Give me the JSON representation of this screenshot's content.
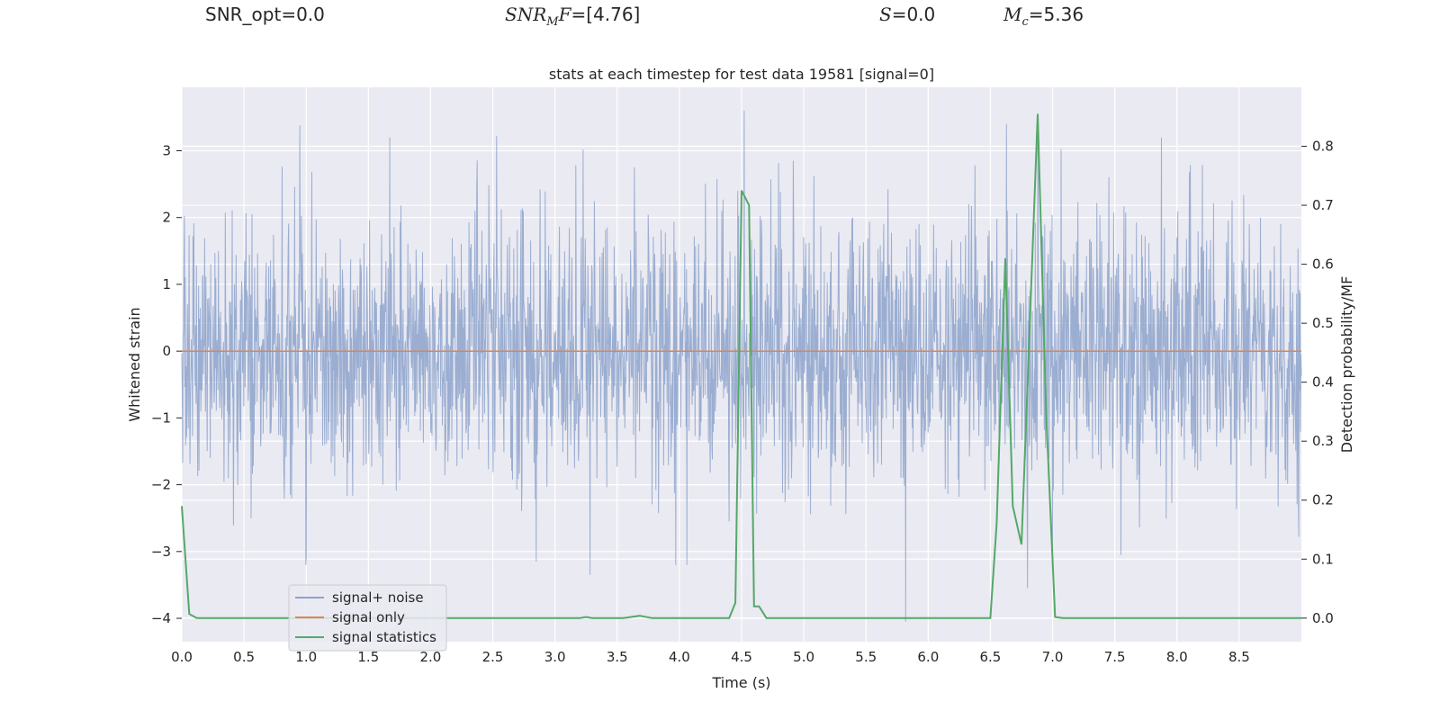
{
  "header": {
    "snr_opt": "SNR_opt=0.0",
    "snr_mf_value": "=[4.76]",
    "s_value": "=0.0",
    "mc_value": "=5.36"
  },
  "chart_data": {
    "type": "line",
    "title": "stats at each timestep for test data 19581 [signal=0]",
    "xlabel": "Time (s)",
    "ylabel_left": "Whitened strain",
    "ylabel_right": "Detection probability/MF",
    "xlim": [
      0.0,
      9.0
    ],
    "ylim_left": [
      -4.35,
      3.95
    ],
    "ylim_right": [
      -0.04,
      0.9
    ],
    "xticks": [
      0.0,
      0.5,
      1.0,
      1.5,
      2.0,
      2.5,
      3.0,
      3.5,
      4.0,
      4.5,
      5.0,
      5.5,
      6.0,
      6.5,
      7.0,
      7.5,
      8.0,
      8.5
    ],
    "xtick_labels": [
      "0.0",
      "0.5",
      "1.0",
      "1.5",
      "2.0",
      "2.5",
      "3.0",
      "3.5",
      "4.0",
      "4.5",
      "5.0",
      "5.5",
      "6.0",
      "6.5",
      "7.0",
      "7.5",
      "8.0",
      "8.5"
    ],
    "yticks_left": [
      3,
      2,
      1,
      0,
      -1,
      -2,
      -3,
      -4
    ],
    "ytick_labels_left": [
      "3",
      "2",
      "1",
      "0",
      "−1",
      "−2",
      "−3",
      "−4"
    ],
    "yticks_right": [
      0.8,
      0.7,
      0.6,
      0.5,
      0.4,
      0.3,
      0.2,
      0.1,
      0.0
    ],
    "ytick_labels_right": [
      "0.8",
      "0.7",
      "0.6",
      "0.5",
      "0.4",
      "0.3",
      "0.2",
      "0.1",
      "0.0"
    ],
    "grid": true,
    "legend_position": "lower-left",
    "series": [
      {
        "name": "signal+ noise",
        "axis": "left",
        "color": "#8da3cb",
        "description_values": {
          "noise_std": 1.0,
          "spikes": [
            [
              0.95,
              3.38
            ],
            [
              2.53,
              3.22
            ],
            [
              4.52,
              3.6
            ],
            [
              6.63,
              3.4
            ],
            [
              6.88,
              3.48
            ],
            [
              3.28,
              -3.35
            ],
            [
              3.97,
              -3.2
            ],
            [
              5.82,
              -4.05
            ],
            [
              6.8,
              -3.55
            ],
            [
              7.0,
              -3.2
            ],
            [
              1.0,
              -3.05
            ],
            [
              2.85,
              -3.15
            ],
            [
              7.55,
              -3.05
            ]
          ]
        }
      },
      {
        "name": "signal only",
        "axis": "left",
        "color": "#dd8452",
        "x": [
          0.0,
          9.0
        ],
        "y": [
          0.0,
          0.0
        ]
      },
      {
        "name": "signal statistics",
        "axis": "right",
        "color": "#55a868",
        "x": [
          0.0,
          0.06,
          0.12,
          3.2,
          3.25,
          3.3,
          3.55,
          3.68,
          3.78,
          4.4,
          4.45,
          4.5,
          4.56,
          4.6,
          4.64,
          4.7,
          6.5,
          6.55,
          6.62,
          6.68,
          6.75,
          6.88,
          6.95,
          7.02,
          7.08,
          9.0
        ],
        "y": [
          0.19,
          0.007,
          0.0,
          0.0,
          0.002,
          0.0,
          0.0,
          0.004,
          0.0,
          0.0,
          0.026,
          0.725,
          0.7,
          0.02,
          0.02,
          0.0,
          0.0,
          0.16,
          0.61,
          0.19,
          0.125,
          0.855,
          0.34,
          0.002,
          0.0,
          0.0
        ]
      }
    ]
  }
}
